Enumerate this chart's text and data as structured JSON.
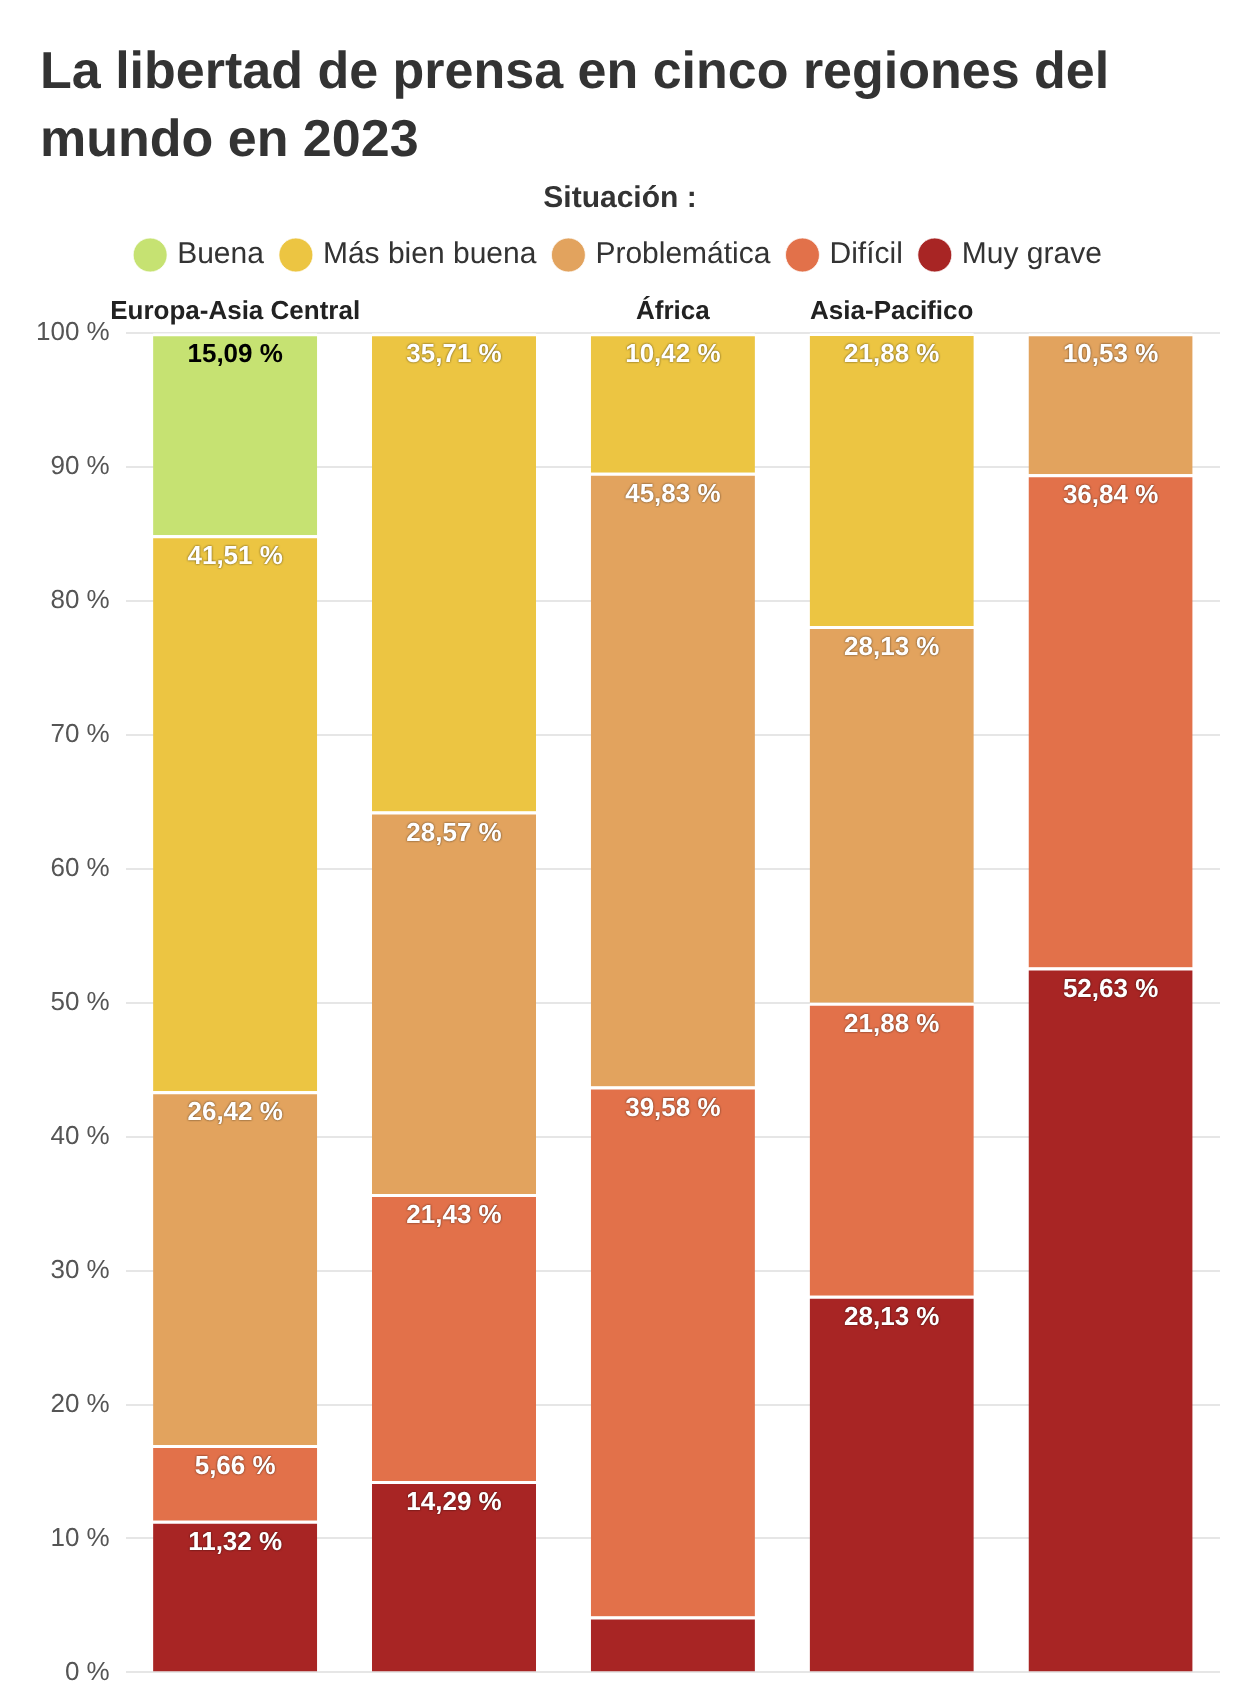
{
  "chart_data": {
    "type": "bar",
    "stacked": true,
    "title": "La libertad de prensa en cinco regiones del mundo en 2023",
    "legend_title": "Situación :",
    "legend": "top",
    "grid": "y",
    "categories": [
      "Europa-Asia Central",
      null,
      "África",
      "Asia-Pacifico",
      null
    ],
    "ylim": [
      0,
      100
    ],
    "yticks": [
      {
        "value": 0,
        "label": "0 %"
      },
      {
        "value": 10,
        "label": "10 %"
      },
      {
        "value": 20,
        "label": "20 %"
      },
      {
        "value": 30,
        "label": "30 %"
      },
      {
        "value": 40,
        "label": "40 %"
      },
      {
        "value": 50,
        "label": "50 %"
      },
      {
        "value": 60,
        "label": "60 %"
      },
      {
        "value": 70,
        "label": "70 %"
      },
      {
        "value": 80,
        "label": "80 %"
      },
      {
        "value": 90,
        "label": "90 %"
      },
      {
        "value": 100,
        "label": "100 %"
      }
    ],
    "series": [
      {
        "name": "Muy grave",
        "color": "#a82524",
        "values": [
          11.32,
          14.29,
          4.17,
          28.13,
          52.63
        ],
        "value_labels": [
          "11,32 %",
          "14,29 %",
          null,
          "28,13 %",
          "52,63 %"
        ]
      },
      {
        "name": "Difícil",
        "color": "#e2714a",
        "values": [
          5.66,
          21.43,
          39.58,
          21.88,
          36.84
        ],
        "value_labels": [
          "5,66 %",
          "21,43 %",
          "39,58 %",
          "21,88 %",
          "36,84 %"
        ]
      },
      {
        "name": "Problemática",
        "color": "#e2a35e",
        "values": [
          26.42,
          28.57,
          45.83,
          28.13,
          10.53
        ],
        "value_labels": [
          "26,42 %",
          "28,57 %",
          "45,83 %",
          "28,13 %",
          "10,53 %"
        ]
      },
      {
        "name": "Más bien buena",
        "color": "#ecc542",
        "values": [
          41.51,
          35.71,
          10.42,
          21.88,
          0
        ],
        "value_labels": [
          "41,51 %",
          "35,71 %",
          "10,42 %",
          "21,88 %",
          null
        ]
      },
      {
        "name": "Buena",
        "color": "#c6e272",
        "values": [
          15.09,
          0,
          0,
          0,
          0
        ],
        "value_labels": [
          "15,09 %",
          null,
          null,
          null,
          null
        ]
      }
    ]
  }
}
